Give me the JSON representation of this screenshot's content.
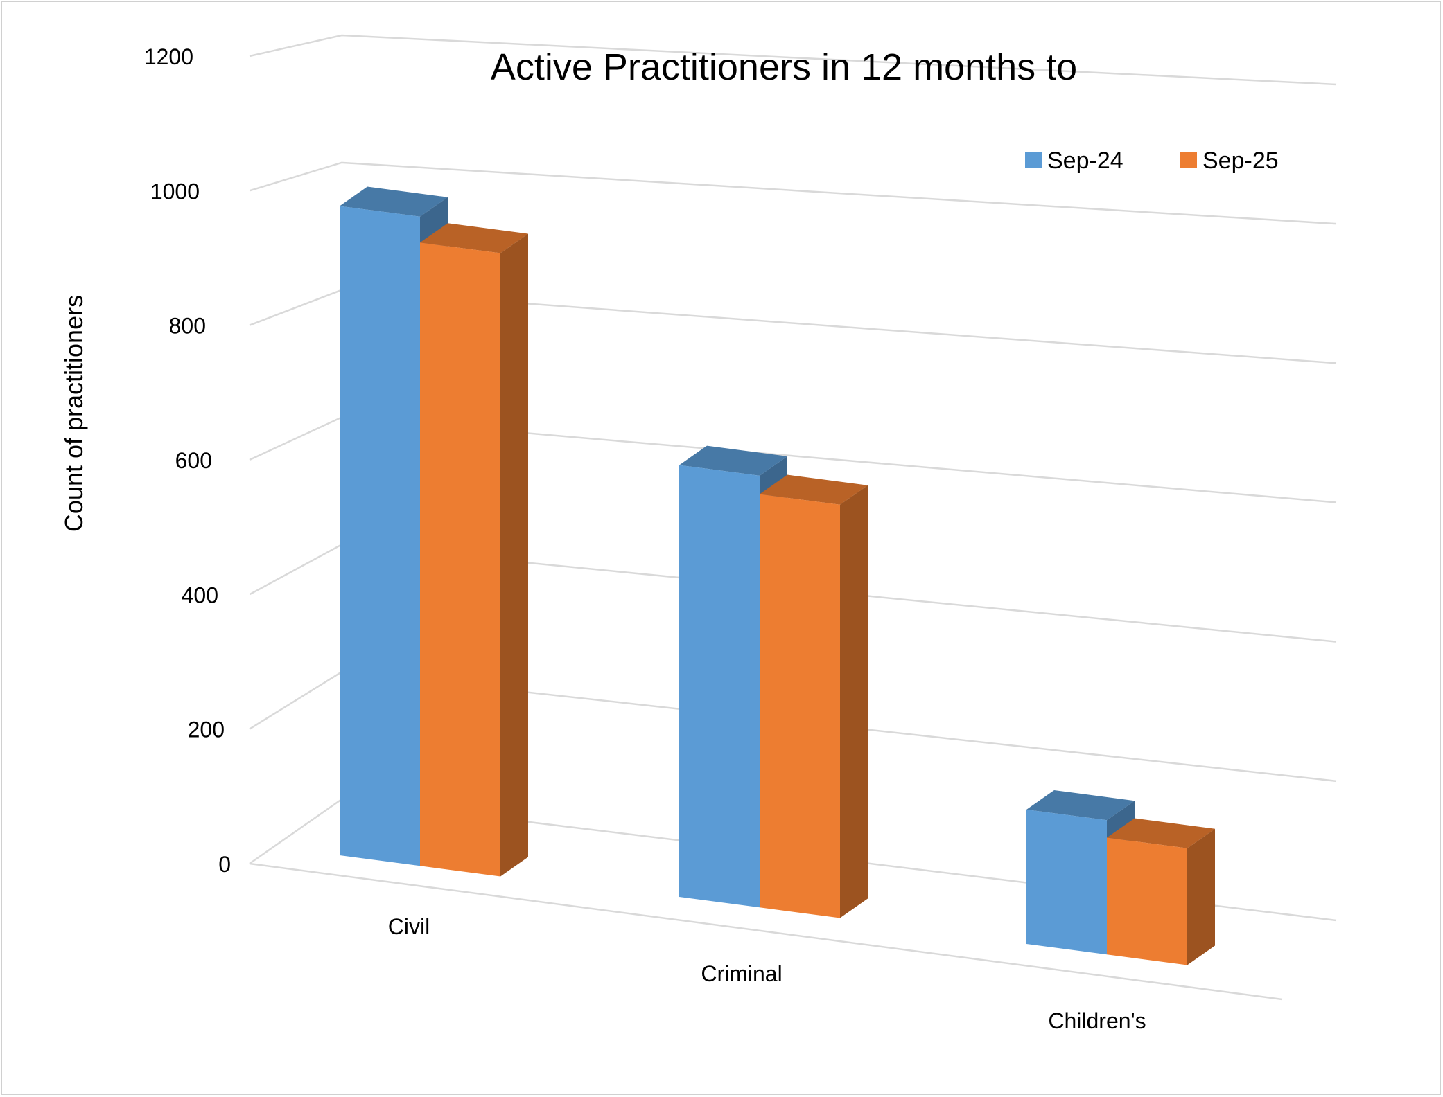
{
  "chart_data": {
    "type": "bar",
    "title": "Active Practitioners in 12 months to",
    "xlabel": "",
    "ylabel": "Count of practitioners",
    "categories": [
      "Civil",
      "Criminal",
      "Children's"
    ],
    "series": [
      {
        "name": "Sep-24",
        "values": [
          1000,
          700,
          230
        ],
        "color": "#5B9BD5"
      },
      {
        "name": "Sep-25",
        "values": [
          960,
          670,
          200
        ],
        "color": "#ED7D31"
      }
    ],
    "ylim": [
      0,
      1200
    ],
    "yticks": [
      "0",
      "200",
      "400",
      "600",
      "800",
      "1000",
      "1200"
    ],
    "grid": true,
    "legend": "top-right",
    "style": "3d-clustered-column"
  }
}
